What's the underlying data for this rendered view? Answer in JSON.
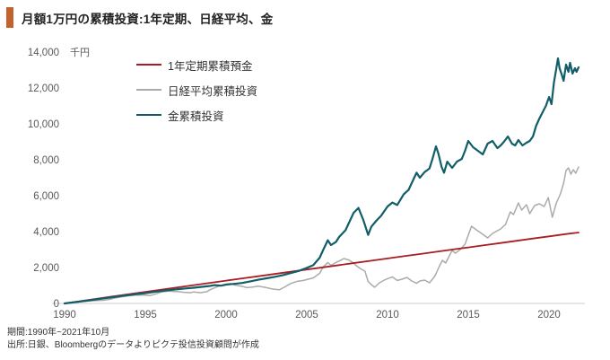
{
  "header": {
    "title": "月額1万円の累積投資:1年定期、日経平均、金",
    "accent_color": "#C4622D"
  },
  "footer": {
    "period": "期間:1990年~2021年10月",
    "source": "出所:日銀、Bloombergのデータよりピクテ投信投資顧問が作成"
  },
  "chart_data": {
    "type": "line",
    "title": "月額1万円の累積投資:1年定期、日経平均、金",
    "unit": "千円",
    "xlim": [
      1990,
      2021.83
    ],
    "ylim": [
      0,
      14000
    ],
    "x_ticks": [
      1990,
      1995,
      2000,
      2005,
      2010,
      2015,
      2020
    ],
    "y_ticks": [
      0,
      2000,
      4000,
      6000,
      8000,
      10000,
      12000,
      14000
    ],
    "grid": false,
    "legend_position": "top-left-inside",
    "axis_color": "#cccccc",
    "tick_color": "#595959",
    "series": [
      {
        "key": "deposit",
        "name": "1年定期累積預金",
        "color": "#A81E24",
        "width": 1.8,
        "points": [
          [
            1990,
            0
          ],
          [
            1991,
            130
          ],
          [
            1992,
            260
          ],
          [
            1993,
            390
          ],
          [
            1994,
            515
          ],
          [
            1995,
            645
          ],
          [
            1996,
            770
          ],
          [
            1997,
            895
          ],
          [
            1998,
            1020
          ],
          [
            1999,
            1145
          ],
          [
            2000,
            1270
          ],
          [
            2001,
            1395
          ],
          [
            2002,
            1515
          ],
          [
            2003,
            1640
          ],
          [
            2004,
            1765
          ],
          [
            2005,
            1890
          ],
          [
            2006,
            2010
          ],
          [
            2007,
            2135
          ],
          [
            2008,
            2260
          ],
          [
            2009,
            2380
          ],
          [
            2010,
            2505
          ],
          [
            2011,
            2630
          ],
          [
            2012,
            2750
          ],
          [
            2013,
            2875
          ],
          [
            2014,
            3000
          ],
          [
            2015,
            3120
          ],
          [
            2016,
            3245
          ],
          [
            2017,
            3365
          ],
          [
            2018,
            3490
          ],
          [
            2019,
            3615
          ],
          [
            2020,
            3735
          ],
          [
            2021,
            3860
          ],
          [
            2021.83,
            3950
          ]
        ]
      },
      {
        "key": "nikkei",
        "name": "日経平均累積投資",
        "color": "#ABABAB",
        "width": 1.5,
        "points": [
          [
            1990,
            0
          ],
          [
            1990.3,
            30
          ],
          [
            1990.6,
            55
          ],
          [
            1991,
            95
          ],
          [
            1991.5,
            140
          ],
          [
            1992,
            165
          ],
          [
            1992.4,
            175
          ],
          [
            1992.8,
            230
          ],
          [
            1993,
            280
          ],
          [
            1993.5,
            360
          ],
          [
            1994,
            430
          ],
          [
            1994.4,
            465
          ],
          [
            1994.8,
            460
          ],
          [
            1995,
            470
          ],
          [
            1995.3,
            440
          ],
          [
            1995.7,
            540
          ],
          [
            1996,
            640
          ],
          [
            1996.4,
            690
          ],
          [
            1996.8,
            660
          ],
          [
            1997,
            665
          ],
          [
            1997.4,
            620
          ],
          [
            1997.8,
            600
          ],
          [
            1998,
            640
          ],
          [
            1998.4,
            600
          ],
          [
            1998.8,
            650
          ],
          [
            1999,
            760
          ],
          [
            1999.5,
            950
          ],
          [
            2000,
            1060
          ],
          [
            2000.25,
            1110
          ],
          [
            2000.6,
            1010
          ],
          [
            2001,
            950
          ],
          [
            2001.3,
            880
          ],
          [
            2001.7,
            920
          ],
          [
            2002,
            960
          ],
          [
            2002.4,
            900
          ],
          [
            2002.8,
            820
          ],
          [
            2003,
            790
          ],
          [
            2003.3,
            760
          ],
          [
            2003.6,
            900
          ],
          [
            2004,
            1110
          ],
          [
            2004.4,
            1230
          ],
          [
            2004.8,
            1280
          ],
          [
            2005,
            1330
          ],
          [
            2005.4,
            1420
          ],
          [
            2005.8,
            1680
          ],
          [
            2006,
            2020
          ],
          [
            2006.3,
            2280
          ],
          [
            2006.5,
            2120
          ],
          [
            2006.8,
            2280
          ],
          [
            2007,
            2360
          ],
          [
            2007.3,
            2500
          ],
          [
            2007.6,
            2420
          ],
          [
            2007.9,
            2250
          ],
          [
            2008,
            2150
          ],
          [
            2008.3,
            1950
          ],
          [
            2008.6,
            1800
          ],
          [
            2008.8,
            1220
          ],
          [
            2009,
            1050
          ],
          [
            2009.2,
            900
          ],
          [
            2009.5,
            1150
          ],
          [
            2009.8,
            1300
          ],
          [
            2010,
            1380
          ],
          [
            2010.3,
            1480
          ],
          [
            2010.6,
            1280
          ],
          [
            2010.9,
            1350
          ],
          [
            2011.2,
            1450
          ],
          [
            2011.5,
            1250
          ],
          [
            2011.8,
            1120
          ],
          [
            2012,
            1250
          ],
          [
            2012.3,
            1300
          ],
          [
            2012.6,
            1150
          ],
          [
            2012.9,
            1480
          ],
          [
            2013,
            1650
          ],
          [
            2013.2,
            2050
          ],
          [
            2013.4,
            2400
          ],
          [
            2013.6,
            2250
          ],
          [
            2013.8,
            2600
          ],
          [
            2014,
            2950
          ],
          [
            2014.2,
            2800
          ],
          [
            2014.5,
            3000
          ],
          [
            2014.8,
            3300
          ],
          [
            2015.2,
            4300
          ],
          [
            2015.5,
            4100
          ],
          [
            2015.9,
            3850
          ],
          [
            2016.2,
            3650
          ],
          [
            2016.5,
            3900
          ],
          [
            2016.8,
            4050
          ],
          [
            2017,
            4150
          ],
          [
            2017.3,
            4400
          ],
          [
            2017.6,
            5100
          ],
          [
            2017.8,
            4950
          ],
          [
            2018.1,
            5600
          ],
          [
            2018.3,
            5200
          ],
          [
            2018.6,
            5500
          ],
          [
            2018.8,
            5000
          ],
          [
            2019.1,
            5450
          ],
          [
            2019.4,
            5550
          ],
          [
            2019.7,
            5400
          ],
          [
            2019.95,
            5900
          ],
          [
            2020.2,
            4800
          ],
          [
            2020.45,
            5600
          ],
          [
            2020.7,
            6100
          ],
          [
            2020.9,
            6700
          ],
          [
            2021.05,
            7400
          ],
          [
            2021.2,
            7550
          ],
          [
            2021.35,
            7200
          ],
          [
            2021.5,
            7450
          ],
          [
            2021.65,
            7250
          ],
          [
            2021.83,
            7600
          ]
        ]
      },
      {
        "key": "gold",
        "name": "金累積投資",
        "color": "#115E68",
        "width": 2.2,
        "points": [
          [
            1990,
            0
          ],
          [
            1990.5,
            55
          ],
          [
            1991,
            110
          ],
          [
            1991.5,
            170
          ],
          [
            1992,
            230
          ],
          [
            1992.5,
            290
          ],
          [
            1993,
            350
          ],
          [
            1993.5,
            410
          ],
          [
            1994,
            470
          ],
          [
            1994.5,
            525
          ],
          [
            1995,
            575
          ],
          [
            1995.5,
            635
          ],
          [
            1996,
            695
          ],
          [
            1996.5,
            745
          ],
          [
            1997,
            795
          ],
          [
            1997.5,
            835
          ],
          [
            1998,
            875
          ],
          [
            1998.5,
            925
          ],
          [
            1999,
            975
          ],
          [
            1999.3,
            1020
          ],
          [
            1999.7,
            990
          ],
          [
            2000,
            1050
          ],
          [
            2000.5,
            1090
          ],
          [
            2001,
            1140
          ],
          [
            2001.5,
            1230
          ],
          [
            2002,
            1320
          ],
          [
            2002.5,
            1400
          ],
          [
            2003,
            1480
          ],
          [
            2003.5,
            1570
          ],
          [
            2004,
            1690
          ],
          [
            2004.5,
            1810
          ],
          [
            2005,
            1980
          ],
          [
            2005.4,
            2130
          ],
          [
            2005.8,
            2550
          ],
          [
            2006,
            2950
          ],
          [
            2006.3,
            3520
          ],
          [
            2006.5,
            3250
          ],
          [
            2006.8,
            3420
          ],
          [
            2007,
            3700
          ],
          [
            2007.4,
            4080
          ],
          [
            2007.9,
            5050
          ],
          [
            2008.2,
            5320
          ],
          [
            2008.5,
            4650
          ],
          [
            2008.8,
            3820
          ],
          [
            2009,
            4280
          ],
          [
            2009.3,
            4600
          ],
          [
            2009.6,
            4880
          ],
          [
            2010,
            5400
          ],
          [
            2010.3,
            5620
          ],
          [
            2010.6,
            5480
          ],
          [
            2011,
            6080
          ],
          [
            2011.3,
            6320
          ],
          [
            2011.6,
            6900
          ],
          [
            2011.8,
            7280
          ],
          [
            2012,
            7000
          ],
          [
            2012.3,
            7320
          ],
          [
            2012.6,
            7520
          ],
          [
            2012.8,
            8100
          ],
          [
            2013,
            8750
          ],
          [
            2013.15,
            8350
          ],
          [
            2013.35,
            7600
          ],
          [
            2013.5,
            7280
          ],
          [
            2013.7,
            7900
          ],
          [
            2014,
            7550
          ],
          [
            2014.3,
            7900
          ],
          [
            2014.6,
            8050
          ],
          [
            2014.8,
            8500
          ],
          [
            2015,
            9050
          ],
          [
            2015.3,
            8700
          ],
          [
            2015.6,
            8500
          ],
          [
            2015.9,
            8300
          ],
          [
            2016.2,
            8900
          ],
          [
            2016.5,
            9050
          ],
          [
            2016.8,
            8650
          ],
          [
            2017,
            8800
          ],
          [
            2017.2,
            9000
          ],
          [
            2017.45,
            9300
          ],
          [
            2017.7,
            8900
          ],
          [
            2017.9,
            8800
          ],
          [
            2018.1,
            9100
          ],
          [
            2018.35,
            8800
          ],
          [
            2018.6,
            8950
          ],
          [
            2018.8,
            9050
          ],
          [
            2019,
            9300
          ],
          [
            2019.2,
            9900
          ],
          [
            2019.4,
            10300
          ],
          [
            2019.6,
            10650
          ],
          [
            2019.8,
            11000
          ],
          [
            2020,
            11500
          ],
          [
            2020.15,
            11100
          ],
          [
            2020.3,
            12300
          ],
          [
            2020.45,
            13100
          ],
          [
            2020.55,
            13650
          ],
          [
            2020.65,
            13100
          ],
          [
            2020.8,
            12700
          ],
          [
            2020.9,
            12400
          ],
          [
            2021.05,
            13300
          ],
          [
            2021.2,
            12900
          ],
          [
            2021.3,
            13400
          ],
          [
            2021.45,
            12800
          ],
          [
            2021.6,
            13100
          ],
          [
            2021.7,
            12900
          ],
          [
            2021.83,
            13150
          ]
        ]
      }
    ]
  }
}
